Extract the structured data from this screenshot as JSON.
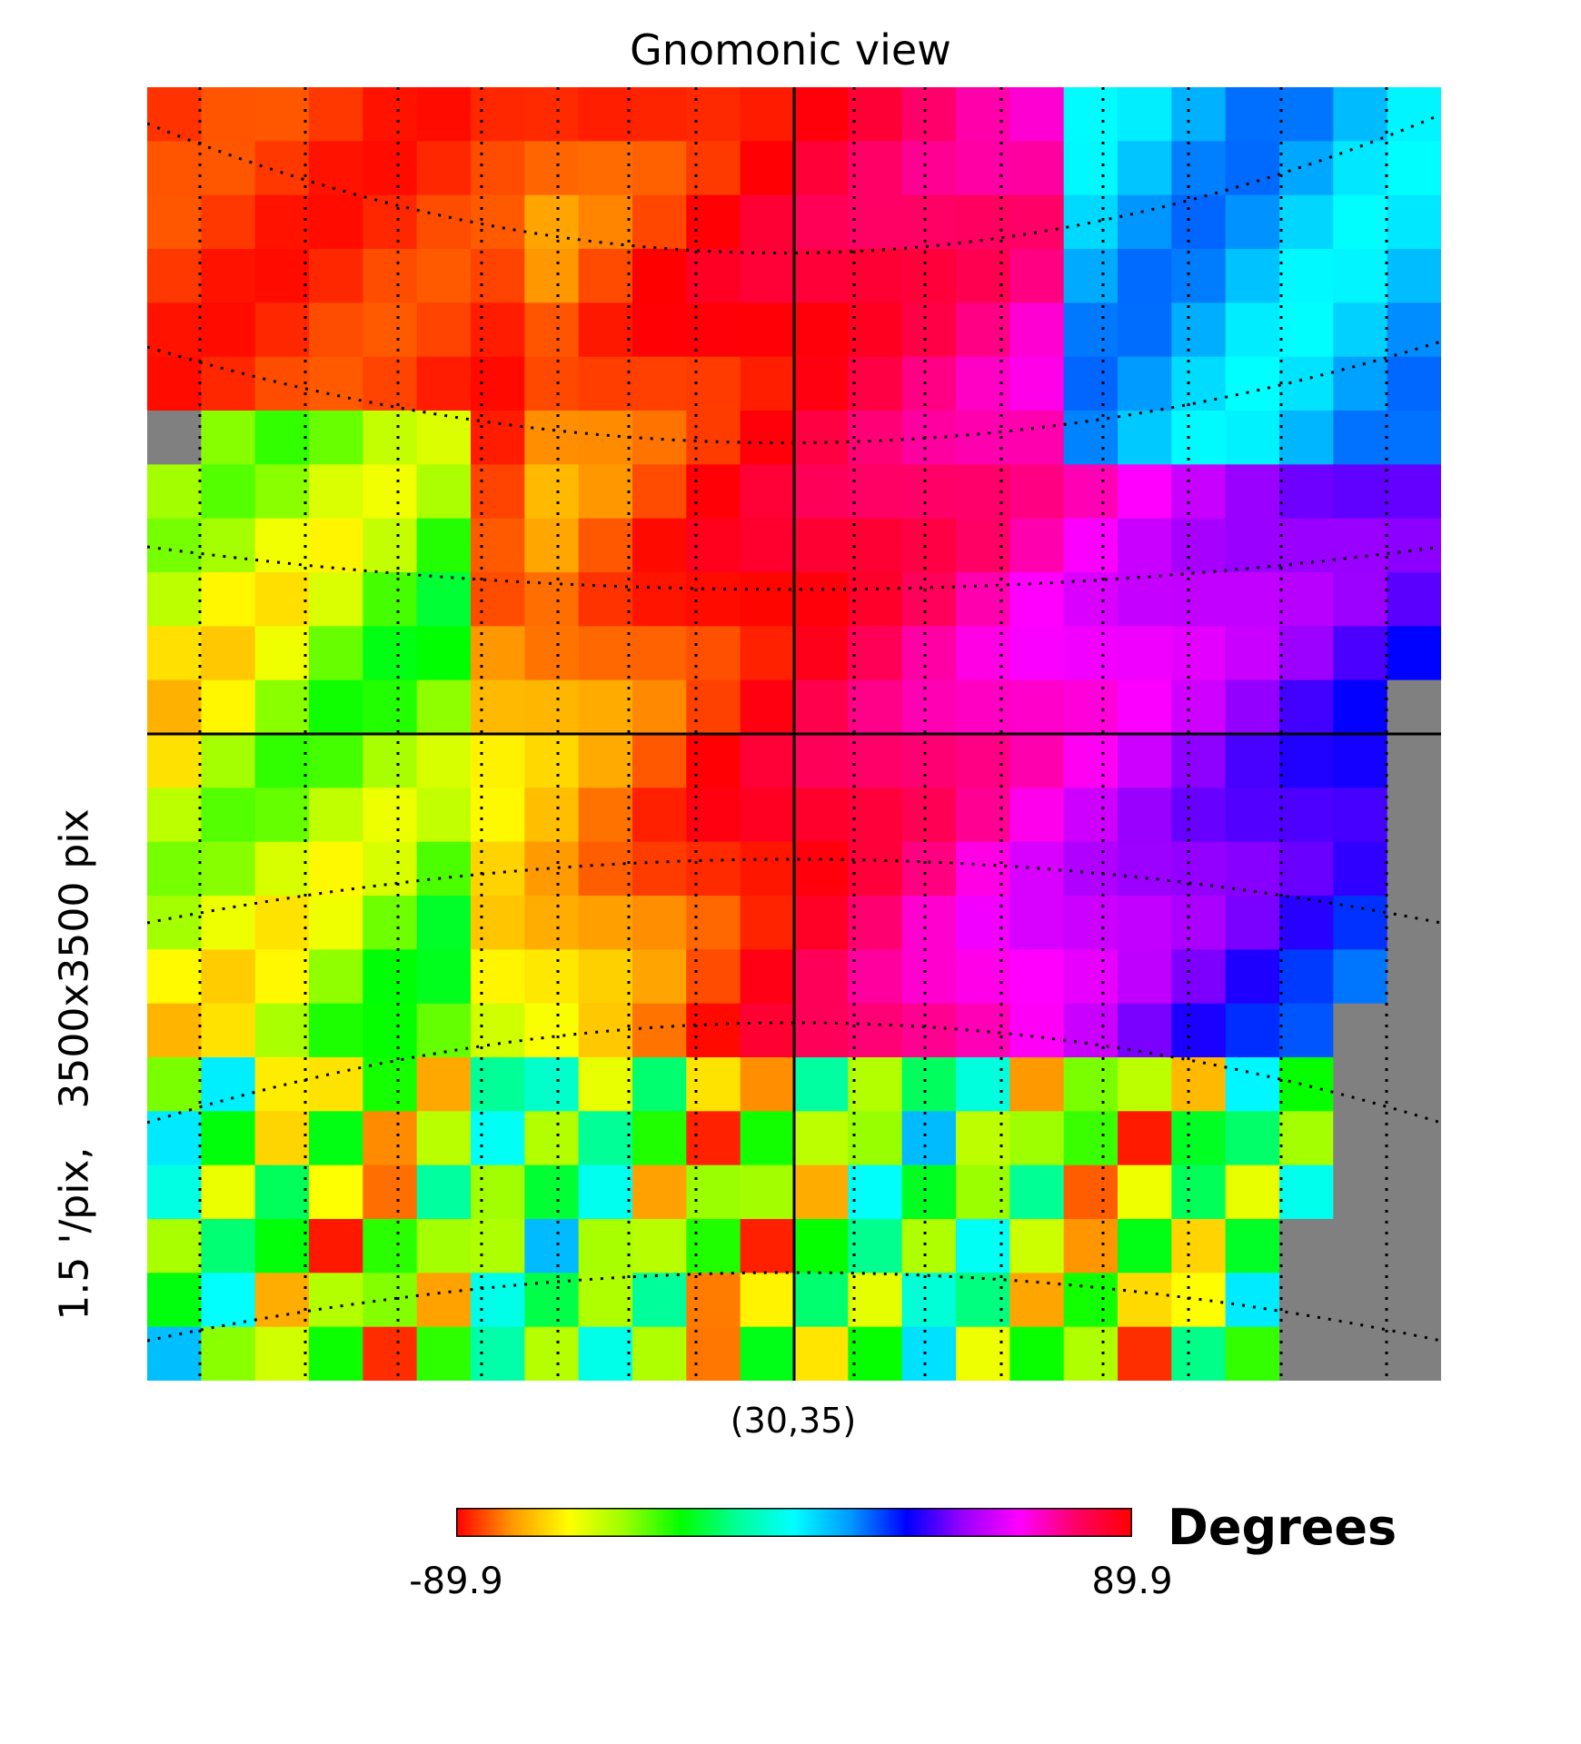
{
  "chart_data": {
    "type": "heatmap",
    "title": "Gnomonic view",
    "ylabel": "1.5 '/pix,   3500x3500 pix",
    "xlabel": "(30,35)",
    "colorbar": {
      "label": "Degrees",
      "min_label": "-89.9",
      "max_label": "89.9",
      "min": -89.9,
      "max": 89.9,
      "colors": [
        "#ff0000",
        "#ff9900",
        "#ffff00",
        "#99ff00",
        "#00ff00",
        "#00ff99",
        "#00ffff",
        "#0099ff",
        "#0000ff",
        "#9900ff",
        "#ff00ff",
        "#ff0066",
        "#ff0000"
      ]
    },
    "missing_color": "#808080",
    "graticule": "dotted",
    "center_crosshair": true,
    "description_grid": {
      "rows": 24,
      "cols": 24,
      "value_regions": [
        {
          "region": "top-left",
          "value_approx": -85
        },
        {
          "region": "top-center",
          "value_approx": 70
        },
        {
          "region": "top-right",
          "value_approx": 0
        },
        {
          "region": "left-middle",
          "value_approx": -40
        },
        {
          "region": "center",
          "value_approx": 80
        },
        {
          "region": "bottom",
          "value_approx": -20
        }
      ]
    }
  }
}
